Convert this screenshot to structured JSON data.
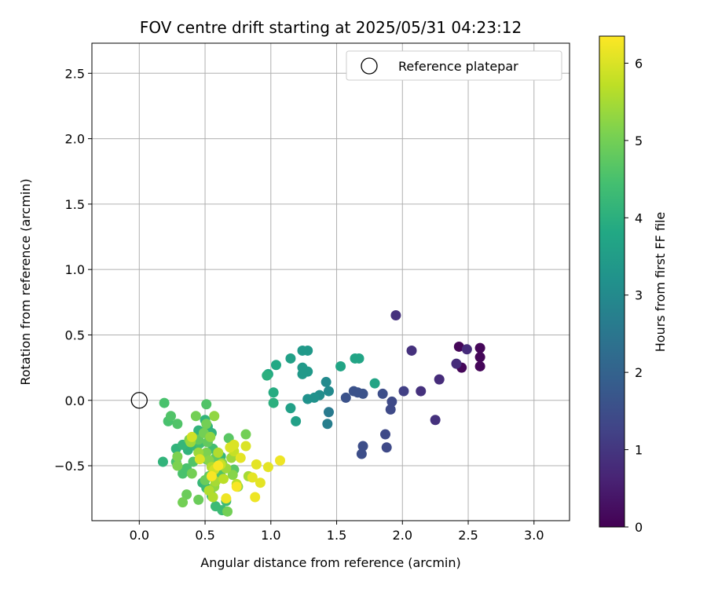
{
  "chart_data": {
    "type": "scatter",
    "title": "FOV centre drift starting at 2025/05/31 04:23:12",
    "xlabel": "Angular distance from reference (arcmin)",
    "ylabel": "Rotation from reference (arcmin)",
    "xlim": [
      -0.36,
      3.27
    ],
    "ylim": [
      -0.92,
      2.73
    ],
    "xticks": [
      0.0,
      0.5,
      1.0,
      1.5,
      2.0,
      2.5,
      3.0
    ],
    "xtick_labels": [
      "0.0",
      "0.5",
      "1.0",
      "1.5",
      "2.0",
      "2.5",
      "3.0"
    ],
    "yticks": [
      -0.5,
      0.0,
      0.5,
      1.0,
      1.5,
      2.0,
      2.5
    ],
    "ytick_labels": [
      "−0.5",
      "0.0",
      "0.5",
      "1.0",
      "1.5",
      "2.0",
      "2.5"
    ],
    "grid": true,
    "legend": {
      "position": "top-right",
      "entries": [
        "Reference platepar"
      ]
    },
    "reference_point": {
      "x": 0.0,
      "y": 0.0,
      "name": "Reference platepar"
    },
    "colorbar": {
      "label": "Hours from first FF file",
      "range": [
        0,
        6.35
      ],
      "ticks": [
        0,
        1,
        2,
        3,
        4,
        5,
        6
      ],
      "tick_labels": [
        "0",
        "1",
        "2",
        "3",
        "4",
        "5",
        "6"
      ],
      "colormap": "viridis"
    },
    "points": [
      {
        "x": 2.43,
        "y": 0.41,
        "c": 0.1
      },
      {
        "x": 2.45,
        "y": 0.25,
        "c": 0.1
      },
      {
        "x": 2.59,
        "y": 0.4,
        "c": 0.1
      },
      {
        "x": 2.59,
        "y": 0.33,
        "c": 0.1
      },
      {
        "x": 2.59,
        "y": 0.26,
        "c": 0.1
      },
      {
        "x": 2.49,
        "y": 0.39,
        "c": 0.8
      },
      {
        "x": 2.41,
        "y": 0.28,
        "c": 0.8
      },
      {
        "x": 2.28,
        "y": 0.16,
        "c": 0.8
      },
      {
        "x": 2.25,
        "y": -0.15,
        "c": 0.9
      },
      {
        "x": 2.14,
        "y": 0.07,
        "c": 0.9
      },
      {
        "x": 2.07,
        "y": 0.38,
        "c": 0.9
      },
      {
        "x": 1.95,
        "y": 0.65,
        "c": 0.9
      },
      {
        "x": 2.01,
        "y": 0.07,
        "c": 1.2
      },
      {
        "x": 1.92,
        "y": -0.01,
        "c": 1.4
      },
      {
        "x": 1.91,
        "y": -0.07,
        "c": 1.4
      },
      {
        "x": 1.87,
        "y": -0.26,
        "c": 1.4
      },
      {
        "x": 1.88,
        "y": -0.36,
        "c": 1.4
      },
      {
        "x": 1.85,
        "y": 0.05,
        "c": 1.5
      },
      {
        "x": 1.7,
        "y": -0.35,
        "c": 1.5
      },
      {
        "x": 1.69,
        "y": -0.41,
        "c": 1.5
      },
      {
        "x": 1.7,
        "y": 0.05,
        "c": 1.6
      },
      {
        "x": 1.63,
        "y": 0.07,
        "c": 1.6
      },
      {
        "x": 1.66,
        "y": 0.06,
        "c": 1.6
      },
      {
        "x": 1.57,
        "y": 0.02,
        "c": 1.6
      },
      {
        "x": 1.44,
        "y": -0.09,
        "c": 2.6
      },
      {
        "x": 1.43,
        "y": -0.18,
        "c": 2.7
      },
      {
        "x": 1.44,
        "y": 0.07,
        "c": 3.0
      },
      {
        "x": 1.42,
        "y": 0.14,
        "c": 3.0
      },
      {
        "x": 1.37,
        "y": 0.04,
        "c": 3.1
      },
      {
        "x": 1.33,
        "y": 0.02,
        "c": 3.2
      },
      {
        "x": 1.28,
        "y": 0.01,
        "c": 3.2
      },
      {
        "x": 1.28,
        "y": 0.38,
        "c": 3.4
      },
      {
        "x": 1.24,
        "y": 0.38,
        "c": 3.4
      },
      {
        "x": 1.28,
        "y": 0.22,
        "c": 3.4
      },
      {
        "x": 1.24,
        "y": 0.25,
        "c": 3.4
      },
      {
        "x": 1.24,
        "y": 0.2,
        "c": 3.4
      },
      {
        "x": 1.15,
        "y": 0.32,
        "c": 3.6
      },
      {
        "x": 1.19,
        "y": -0.16,
        "c": 3.6
      },
      {
        "x": 1.15,
        "y": -0.06,
        "c": 3.6
      },
      {
        "x": 1.79,
        "y": 0.13,
        "c": 3.7
      },
      {
        "x": 1.67,
        "y": 0.32,
        "c": 3.7
      },
      {
        "x": 1.64,
        "y": 0.32,
        "c": 3.7
      },
      {
        "x": 1.53,
        "y": 0.26,
        "c": 3.7
      },
      {
        "x": 1.04,
        "y": 0.27,
        "c": 3.8
      },
      {
        "x": 0.98,
        "y": 0.2,
        "c": 3.8
      },
      {
        "x": 1.02,
        "y": 0.06,
        "c": 3.9
      },
      {
        "x": 1.02,
        "y": -0.02,
        "c": 4.0
      },
      {
        "x": 0.97,
        "y": 0.19,
        "c": 4.0
      },
      {
        "x": 0.52,
        "y": -0.2,
        "c": 4.0
      },
      {
        "x": 0.5,
        "y": -0.15,
        "c": 4.1
      },
      {
        "x": 0.45,
        "y": -0.23,
        "c": 4.1
      },
      {
        "x": 0.55,
        "y": -0.25,
        "c": 4.1
      },
      {
        "x": 0.37,
        "y": -0.38,
        "c": 4.1
      },
      {
        "x": 0.18,
        "y": -0.47,
        "c": 4.1
      },
      {
        "x": 0.28,
        "y": -0.37,
        "c": 4.1
      },
      {
        "x": 0.33,
        "y": -0.34,
        "c": 4.2
      },
      {
        "x": 0.43,
        "y": -0.35,
        "c": 4.2
      },
      {
        "x": 0.62,
        "y": -0.43,
        "c": 4.2
      },
      {
        "x": 0.55,
        "y": -0.5,
        "c": 4.2
      },
      {
        "x": 0.62,
        "y": -0.58,
        "c": 4.2
      },
      {
        "x": 0.48,
        "y": -0.63,
        "c": 4.2
      },
      {
        "x": 0.58,
        "y": -0.81,
        "c": 4.3
      },
      {
        "x": 0.63,
        "y": -0.84,
        "c": 4.3
      },
      {
        "x": 0.66,
        "y": -0.77,
        "c": 4.3
      },
      {
        "x": 0.55,
        "y": -0.73,
        "c": 4.3
      },
      {
        "x": 0.51,
        "y": -0.67,
        "c": 4.3
      },
      {
        "x": 0.6,
        "y": -0.55,
        "c": 4.4
      },
      {
        "x": 0.51,
        "y": -0.45,
        "c": 4.4
      },
      {
        "x": 0.56,
        "y": -0.37,
        "c": 4.4
      },
      {
        "x": 0.46,
        "y": -0.33,
        "c": 4.4
      },
      {
        "x": 0.33,
        "y": -0.56,
        "c": 4.5
      },
      {
        "x": 0.36,
        "y": -0.52,
        "c": 4.5
      },
      {
        "x": 0.28,
        "y": -0.47,
        "c": 4.5
      },
      {
        "x": 0.22,
        "y": -0.16,
        "c": 4.5
      },
      {
        "x": 0.19,
        "y": -0.02,
        "c": 4.5
      },
      {
        "x": 0.24,
        "y": -0.12,
        "c": 4.6
      },
      {
        "x": 0.29,
        "y": -0.18,
        "c": 4.6
      },
      {
        "x": 0.51,
        "y": -0.03,
        "c": 4.6
      },
      {
        "x": 0.41,
        "y": -0.47,
        "c": 4.6
      },
      {
        "x": 0.61,
        "y": -0.56,
        "c": 4.6
      },
      {
        "x": 0.68,
        "y": -0.29,
        "c": 4.7
      },
      {
        "x": 0.72,
        "y": -0.53,
        "c": 4.7
      },
      {
        "x": 0.45,
        "y": -0.3,
        "c": 4.8
      },
      {
        "x": 0.52,
        "y": -0.32,
        "c": 4.8
      },
      {
        "x": 0.58,
        "y": -0.44,
        "c": 4.8
      },
      {
        "x": 0.53,
        "y": -0.58,
        "c": 4.8
      },
      {
        "x": 0.45,
        "y": -0.76,
        "c": 4.9
      },
      {
        "x": 0.36,
        "y": -0.72,
        "c": 4.9
      },
      {
        "x": 0.5,
        "y": -0.61,
        "c": 4.9
      },
      {
        "x": 0.43,
        "y": -0.12,
        "c": 5.0
      },
      {
        "x": 0.51,
        "y": -0.18,
        "c": 5.0
      },
      {
        "x": 0.49,
        "y": -0.25,
        "c": 5.0
      },
      {
        "x": 0.81,
        "y": -0.26,
        "c": 5.0
      },
      {
        "x": 0.67,
        "y": -0.85,
        "c": 5.0
      },
      {
        "x": 0.33,
        "y": -0.78,
        "c": 5.0
      },
      {
        "x": 0.4,
        "y": -0.56,
        "c": 5.0
      },
      {
        "x": 0.29,
        "y": -0.43,
        "c": 5.1
      },
      {
        "x": 0.29,
        "y": -0.5,
        "c": 5.1
      },
      {
        "x": 0.51,
        "y": -0.4,
        "c": 5.1
      },
      {
        "x": 0.38,
        "y": -0.3,
        "c": 5.1
      },
      {
        "x": 0.53,
        "y": -0.46,
        "c": 5.2
      },
      {
        "x": 0.63,
        "y": -0.48,
        "c": 5.2
      },
      {
        "x": 0.75,
        "y": -0.66,
        "c": 5.2
      },
      {
        "x": 0.71,
        "y": -0.57,
        "c": 5.2
      },
      {
        "x": 0.57,
        "y": -0.66,
        "c": 5.3
      },
      {
        "x": 0.57,
        "y": -0.12,
        "c": 5.3
      },
      {
        "x": 0.54,
        "y": -0.28,
        "c": 5.3
      },
      {
        "x": 0.39,
        "y": -0.32,
        "c": 5.4
      },
      {
        "x": 0.45,
        "y": -0.4,
        "c": 5.4
      },
      {
        "x": 0.7,
        "y": -0.44,
        "c": 5.4
      },
      {
        "x": 0.66,
        "y": -0.52,
        "c": 5.4
      },
      {
        "x": 0.58,
        "y": -0.62,
        "c": 5.5
      },
      {
        "x": 0.83,
        "y": -0.58,
        "c": 5.5
      },
      {
        "x": 0.6,
        "y": -0.4,
        "c": 5.6
      },
      {
        "x": 0.55,
        "y": -0.51,
        "c": 5.6
      },
      {
        "x": 0.53,
        "y": -0.69,
        "c": 5.6
      },
      {
        "x": 0.56,
        "y": -0.74,
        "c": 5.6
      },
      {
        "x": 0.64,
        "y": -0.6,
        "c": 5.7
      },
      {
        "x": 0.74,
        "y": -0.64,
        "c": 5.7
      },
      {
        "x": 0.62,
        "y": -0.49,
        "c": 5.8
      },
      {
        "x": 0.72,
        "y": -0.39,
        "c": 5.8
      },
      {
        "x": 0.57,
        "y": -0.53,
        "c": 5.9
      },
      {
        "x": 0.4,
        "y": -0.28,
        "c": 5.9
      },
      {
        "x": 0.46,
        "y": -0.45,
        "c": 6.0
      },
      {
        "x": 0.69,
        "y": -0.36,
        "c": 6.0
      },
      {
        "x": 0.72,
        "y": -0.34,
        "c": 6.0
      },
      {
        "x": 0.81,
        "y": -0.35,
        "c": 6.0
      },
      {
        "x": 0.77,
        "y": -0.44,
        "c": 6.1
      },
      {
        "x": 0.86,
        "y": -0.59,
        "c": 6.1
      },
      {
        "x": 0.92,
        "y": -0.63,
        "c": 6.1
      },
      {
        "x": 0.89,
        "y": -0.49,
        "c": 6.1
      },
      {
        "x": 0.98,
        "y": -0.51,
        "c": 6.1
      },
      {
        "x": 1.07,
        "y": -0.46,
        "c": 6.2
      },
      {
        "x": 0.88,
        "y": -0.74,
        "c": 6.2
      },
      {
        "x": 0.66,
        "y": -0.75,
        "c": 6.2
      },
      {
        "x": 0.74,
        "y": -0.66,
        "c": 6.3
      },
      {
        "x": 0.55,
        "y": -0.58,
        "c": 6.3
      },
      {
        "x": 0.6,
        "y": -0.5,
        "c": 6.3
      }
    ]
  }
}
